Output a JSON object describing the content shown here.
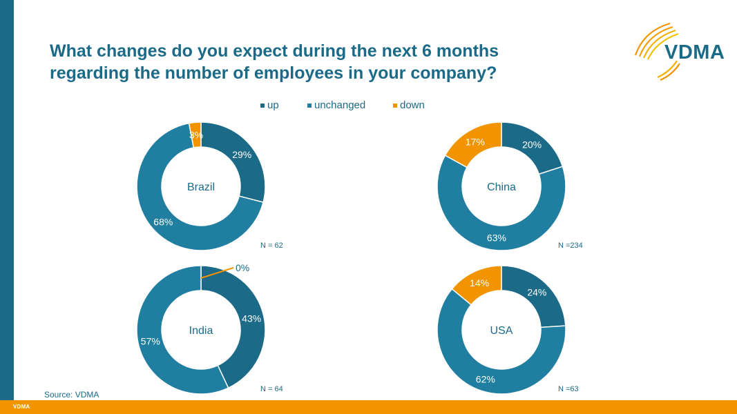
{
  "title_line1": "What changes do you expect during the next 6 months",
  "title_line2": "regarding the number of employees in your company?",
  "logo_text": "VDMA",
  "footer_text": "VDMA",
  "source": "Source: VDMA",
  "colors": {
    "up": "#1b6a88",
    "unchanged": "#207ea0",
    "down": "#f29400",
    "text": "#1b6a88",
    "accent_bar": "#f29400"
  },
  "legend": [
    {
      "key": "up",
      "label": "up"
    },
    {
      "key": "unchanged",
      "label": "unchanged"
    },
    {
      "key": "down",
      "label": "down"
    }
  ],
  "chart_data": [
    {
      "type": "pie",
      "donut": true,
      "title": "Brazil",
      "n_label": "N = 62",
      "series": [
        {
          "name": "up",
          "value": 29,
          "label": "29%"
        },
        {
          "name": "unchanged",
          "value": 68,
          "label": "68%"
        },
        {
          "name": "down",
          "value": 3,
          "label": "3%"
        }
      ]
    },
    {
      "type": "pie",
      "donut": true,
      "title": "China",
      "n_label": "N =234",
      "series": [
        {
          "name": "up",
          "value": 20,
          "label": "20%"
        },
        {
          "name": "unchanged",
          "value": 63,
          "label": "63%"
        },
        {
          "name": "down",
          "value": 17,
          "label": "17%"
        }
      ]
    },
    {
      "type": "pie",
      "donut": true,
      "title": "India",
      "n_label": "N = 64",
      "series": [
        {
          "name": "up",
          "value": 43,
          "label": "43%"
        },
        {
          "name": "unchanged",
          "value": 57,
          "label": "57%"
        },
        {
          "name": "down",
          "value": 0,
          "label": "0%"
        }
      ]
    },
    {
      "type": "pie",
      "donut": true,
      "title": "USA",
      "n_label": "N =63",
      "series": [
        {
          "name": "up",
          "value": 24,
          "label": "24%"
        },
        {
          "name": "unchanged",
          "value": 62,
          "label": "62%"
        },
        {
          "name": "down",
          "value": 14,
          "label": "14%"
        }
      ]
    }
  ]
}
